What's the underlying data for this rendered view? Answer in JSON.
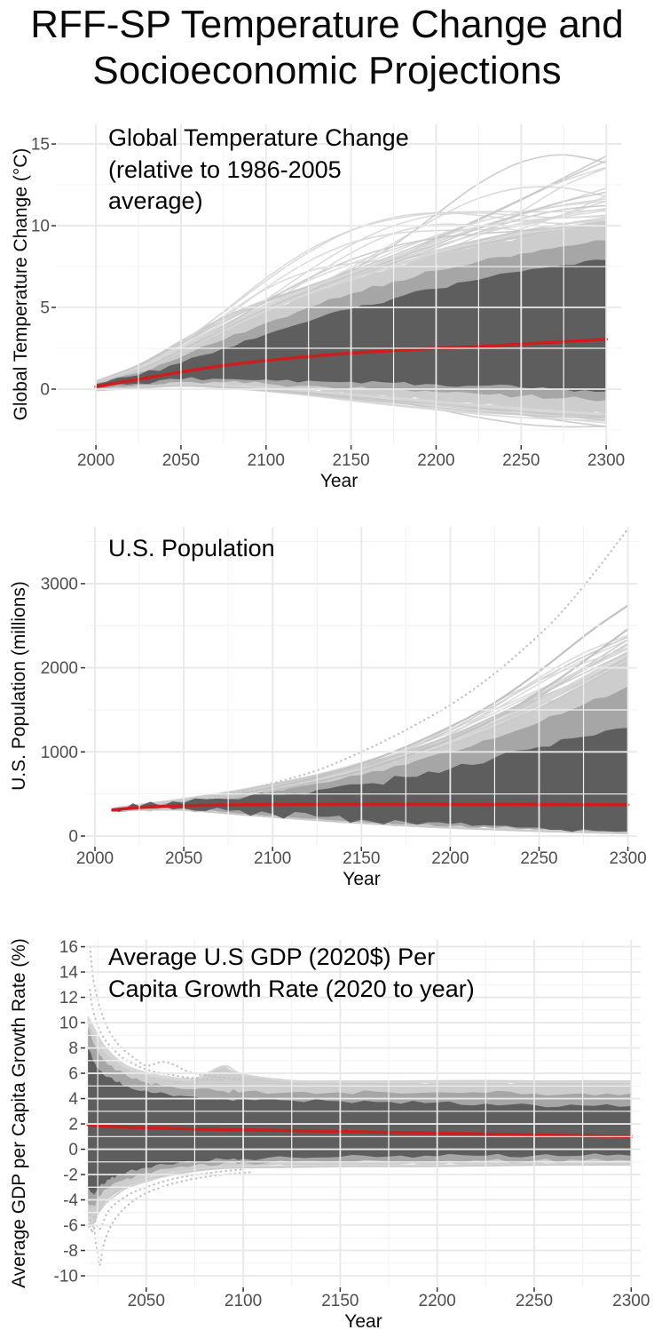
{
  "page_title": {
    "line1": "RFF-SP Temperature Change and",
    "line2": "Socioeconomic Projections"
  },
  "colors": {
    "band_inner": "#5e5e5e",
    "band_mid": "#a6a6a6",
    "band_outer": "#cdcdcd",
    "spaghetti": "#d7d7d7",
    "spaghetti_dark": "#c6c6c6",
    "outlier": "#c2c2c2",
    "median": "#cf1d1c",
    "grid_major": "#e8e8e8",
    "grid_minor": "#f3f3f3",
    "tick_mark": "#333333",
    "tick_text": "#4d4d4d",
    "axis_title": "#0a0a0a"
  },
  "chart_data": [
    {
      "type": "line",
      "annotation": [
        "Global Temperature Change",
        "(relative to 1986-2005",
        "average)"
      ],
      "xlabel": "Year",
      "ylabel": "Global Temperature Change (°C)",
      "x_domain": [
        1977,
        2308.8
      ],
      "x_ticks": [
        2000,
        2050,
        2100,
        2150,
        2200,
        2250,
        2300
      ],
      "x_minor_step": 25,
      "y_domain": [
        -3.37,
        16.2
      ],
      "y_ticks": [
        0,
        5,
        10,
        15
      ],
      "y_minor_step": 2.5,
      "x": [
        2000,
        2025,
        2050,
        2075,
        2100,
        2125,
        2150,
        2175,
        2200,
        2225,
        2250,
        2275,
        2300
      ],
      "median": [
        0.15,
        0.6,
        1.05,
        1.45,
        1.75,
        2.0,
        2.2,
        2.35,
        2.5,
        2.6,
        2.75,
        2.9,
        3.05
      ],
      "band_inner": {
        "upper": [
          0.3,
          0.85,
          1.6,
          2.5,
          3.35,
          4.15,
          4.9,
          5.55,
          6.15,
          6.7,
          7.2,
          7.6,
          7.9
        ],
        "lower": [
          0.05,
          0.35,
          0.6,
          0.62,
          0.58,
          0.52,
          0.45,
          0.38,
          0.3,
          0.2,
          0.1,
          0.0,
          -0.15
        ]
      },
      "band_mid": {
        "upper": [
          0.35,
          1.0,
          1.95,
          3.0,
          4.05,
          5.0,
          5.85,
          6.6,
          7.25,
          7.8,
          8.3,
          8.75,
          9.1
        ],
        "lower": [
          0.0,
          0.25,
          0.45,
          0.42,
          0.33,
          0.2,
          0.08,
          -0.05,
          -0.18,
          -0.3,
          -0.42,
          -0.55,
          -0.68
        ]
      },
      "band_outer": {
        "upper": [
          0.4,
          1.15,
          2.3,
          3.55,
          4.75,
          5.8,
          6.7,
          7.5,
          8.2,
          8.8,
          9.3,
          9.7,
          10.05
        ],
        "lower": [
          -0.05,
          0.15,
          0.3,
          0.22,
          0.08,
          -0.1,
          -0.3,
          -0.5,
          -0.72,
          -0.95,
          -1.15,
          -1.35,
          -1.5
        ]
      },
      "spread": {
        "upper": [
          0.5,
          1.5,
          3.1,
          5.0,
          6.9,
          8.6,
          10.1,
          11.4,
          12.6,
          13.6,
          14.4,
          15.1,
          15.6
        ],
        "lower": [
          -0.1,
          0.05,
          0.15,
          0.0,
          -0.25,
          -0.55,
          -0.9,
          -1.25,
          -1.6,
          -1.95,
          -2.3,
          -2.6,
          -2.9
        ]
      },
      "spaghetti": {
        "count_upper": 34,
        "count_lower": 22,
        "seed": 11
      },
      "outliers": []
    },
    {
      "type": "line",
      "annotation": [
        "U.S. Population"
      ],
      "xlabel": "Year",
      "ylabel": "U.S. Population (millions)",
      "x_domain": [
        1995,
        2305.2
      ],
      "x_ticks": [
        2000,
        2050,
        2100,
        2150,
        2200,
        2250,
        2300
      ],
      "x_minor_step": 25,
      "y_domain": [
        -116,
        3675
      ],
      "y_ticks": [
        0,
        1000,
        2000,
        3000
      ],
      "y_minor_step": 500,
      "x": [
        2010,
        2025,
        2050,
        2075,
        2100,
        2125,
        2150,
        2175,
        2200,
        2225,
        2250,
        2275,
        2300
      ],
      "median": [
        310,
        338,
        360,
        370,
        376,
        378,
        379,
        379,
        378,
        377,
        375,
        373,
        371
      ],
      "band_inner": {
        "upper": [
          318,
          355,
          395,
          440,
          490,
          548,
          615,
          700,
          800,
          930,
          1060,
          1180,
          1285
        ],
        "lower": [
          302,
          322,
          330,
          300,
          262,
          228,
          196,
          168,
          144,
          122,
          100,
          80,
          55
        ]
      },
      "band_mid": {
        "upper": [
          322,
          362,
          412,
          470,
          540,
          625,
          725,
          845,
          990,
          1160,
          1350,
          1560,
          1780
        ],
        "lower": [
          298,
          315,
          318,
          282,
          240,
          205,
          172,
          142,
          116,
          95,
          76,
          60,
          42
        ]
      },
      "band_outer": {
        "upper": [
          325,
          368,
          425,
          492,
          572,
          668,
          785,
          925,
          1090,
          1290,
          1520,
          1790,
          2080
        ],
        "lower": [
          296,
          310,
          310,
          270,
          228,
          190,
          156,
          126,
          100,
          80,
          62,
          48,
          35
        ]
      },
      "spread": {
        "upper": [
          328,
          375,
          445,
          530,
          640,
          775,
          935,
          1125,
          1350,
          1620,
          1900,
          2180,
          2450
        ],
        "lower": [
          294,
          306,
          304,
          262,
          218,
          180,
          146,
          116,
          90,
          70,
          52,
          40,
          28
        ]
      },
      "spaghetti": {
        "count_upper": 28,
        "count_lower": 10,
        "seed": 23
      },
      "outliers": [
        {
          "style": "dotted",
          "x": [
            2010,
            2040,
            2070,
            2100,
            2125,
            2150,
            2175,
            2200,
            2220,
            2240,
            2260,
            2280,
            2300
          ],
          "y": [
            312,
            370,
            470,
            630,
            780,
            1000,
            1260,
            1560,
            1850,
            2200,
            2600,
            3100,
            3650
          ]
        },
        {
          "style": "solid",
          "x": [
            2010,
            2040,
            2070,
            2100,
            2125,
            2150,
            2175,
            2200,
            2220,
            2240,
            2260,
            2280,
            2300
          ],
          "y": [
            310,
            362,
            450,
            580,
            700,
            860,
            1060,
            1300,
            1520,
            1800,
            2120,
            2450,
            2740
          ]
        },
        {
          "style": "solid",
          "x": [
            2010,
            2040,
            2070,
            2100,
            2125,
            2150,
            2175,
            2200,
            2220,
            2240,
            2260,
            2280,
            2300
          ],
          "y": [
            308,
            355,
            430,
            540,
            645,
            780,
            950,
            1150,
            1340,
            1580,
            1850,
            2150,
            2460
          ]
        }
      ]
    },
    {
      "type": "line",
      "annotation": [
        "Average U.S GDP (2020$) Per",
        "Capita Growth Rate (2020 to year)"
      ],
      "xlabel": "Year",
      "ylabel": "Average GDP per Capita Growth Rate (%)",
      "x_domain": [
        2019,
        2304.9
      ],
      "x_ticks": [
        2050,
        2100,
        2150,
        2200,
        2250,
        2300
      ],
      "x_minor_step": 25,
      "y_domain": [
        -10.84,
        16.53
      ],
      "y_ticks": [
        -10,
        -8,
        -6,
        -4,
        -2,
        0,
        2,
        4,
        6,
        8,
        10,
        12,
        14,
        16
      ],
      "y_minor_step": 1,
      "x": [
        2020,
        2023,
        2026,
        2030,
        2035,
        2040,
        2050,
        2060,
        2075,
        2090,
        2100,
        2125,
        2150,
        2175,
        2200,
        2225,
        2250,
        2275,
        2300
      ],
      "median": [
        1.95,
        1.88,
        1.84,
        1.8,
        1.77,
        1.74,
        1.7,
        1.66,
        1.6,
        1.56,
        1.54,
        1.47,
        1.4,
        1.33,
        1.27,
        1.2,
        1.13,
        1.06,
        1.0
      ],
      "band_inner": {
        "upper": [
          7.9,
          6.9,
          6.2,
          5.7,
          5.3,
          5.0,
          4.65,
          4.4,
          4.15,
          4.0,
          3.95,
          3.85,
          3.8,
          3.75,
          3.7,
          3.6,
          3.5,
          3.45,
          3.4
        ],
        "lower": [
          -3.0,
          -3.6,
          -2.9,
          -2.4,
          -2.05,
          -1.8,
          -1.45,
          -1.2,
          -0.95,
          -0.8,
          -0.75,
          -0.65,
          -0.6,
          -0.58,
          -0.55,
          -0.52,
          -0.5,
          -0.5,
          -0.5
        ]
      },
      "band_mid": {
        "upper": [
          9.6,
          8.3,
          7.4,
          6.7,
          6.2,
          5.8,
          5.3,
          5.0,
          4.75,
          4.6,
          4.55,
          4.5,
          4.5,
          4.5,
          4.5,
          4.45,
          4.4,
          4.4,
          4.4
        ],
        "lower": [
          -4.3,
          -4.5,
          -3.7,
          -3.1,
          -2.6,
          -2.3,
          -1.85,
          -1.55,
          -1.25,
          -1.1,
          -1.05,
          -1.0,
          -0.95,
          -0.95,
          -0.95,
          -0.92,
          -0.9,
          -0.9,
          -0.9
        ]
      },
      "band_outer": {
        "upper": [
          10.2,
          9.2,
          8.3,
          7.5,
          6.9,
          6.4,
          5.9,
          5.6,
          5.5,
          6.55,
          5.9,
          5.35,
          5.3,
          5.3,
          5.3,
          5.3,
          5.3,
          5.3,
          5.3
        ],
        "lower": [
          -5.5,
          -5.2,
          -4.4,
          -3.7,
          -3.2,
          -2.8,
          -2.3,
          -1.95,
          -1.6,
          -1.4,
          -1.35,
          -1.3,
          -1.25,
          -1.25,
          -1.25,
          -1.22,
          -1.2,
          -1.2,
          -1.2
        ]
      },
      "spread": {
        "upper": [
          10.5,
          9.6,
          8.7,
          7.9,
          7.2,
          6.7,
          6.2,
          5.9,
          5.7,
          6.6,
          5.9,
          5.5,
          5.45,
          5.45,
          5.45,
          5.45,
          5.4,
          5.4,
          5.4
        ],
        "lower": [
          -6.5,
          -6.0,
          -5.0,
          -4.2,
          -3.6,
          -3.1,
          -2.6,
          -2.2,
          -1.8,
          -1.55,
          -1.5,
          -1.45,
          -1.4,
          -1.4,
          -1.4,
          -1.35,
          -1.3,
          -1.3,
          -1.3
        ]
      },
      "spaghetti": {
        "count_upper": 12,
        "count_lower": 10,
        "seed": 37
      },
      "outliers": [
        {
          "style": "dotted",
          "x": [
            2021,
            2022,
            2023,
            2025,
            2027,
            2030,
            2034,
            2038,
            2043,
            2050,
            2058,
            2064,
            2072,
            2082,
            2092,
            2100
          ],
          "y": [
            16,
            14.3,
            13.2,
            11.8,
            10.8,
            9.6,
            8.6,
            7.9,
            7.3,
            6.6,
            6.9,
            6.7,
            6.1,
            5.8,
            5.6,
            5.5
          ]
        },
        {
          "style": "dotted",
          "x": [
            2021,
            2022,
            2024,
            2026,
            2029,
            2033,
            2038,
            2044,
            2052,
            2062,
            2075,
            2090
          ],
          "y": [
            12.6,
            11.4,
            10.2,
            9.4,
            8.6,
            7.9,
            7.2,
            6.7,
            6.2,
            5.9,
            5.6,
            5.45
          ]
        },
        {
          "style": "dotted",
          "x": [
            2021,
            2022,
            2023,
            2024,
            2025,
            2026,
            2028,
            2031,
            2035,
            2040,
            2046,
            2054,
            2064,
            2076,
            2090,
            2105
          ],
          "y": [
            -5.2,
            -6.6,
            -6.0,
            -7.4,
            -8.2,
            -9.2,
            -7.6,
            -6.3,
            -5.3,
            -4.5,
            -3.8,
            -3.2,
            -2.7,
            -2.3,
            -2.0,
            -1.8
          ]
        },
        {
          "style": "dotted",
          "x": [
            2021,
            2023,
            2026,
            2030,
            2035,
            2042,
            2050,
            2060,
            2072,
            2086,
            2100
          ],
          "y": [
            -4.6,
            -5.4,
            -6.3,
            -5.0,
            -4.2,
            -3.5,
            -3.0,
            -2.5,
            -2.1,
            -1.8,
            -1.6
          ]
        }
      ]
    }
  ]
}
